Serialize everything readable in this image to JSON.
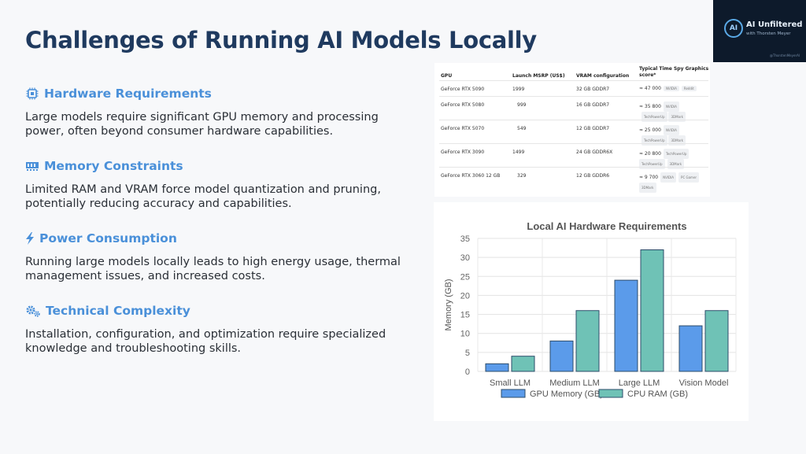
{
  "title": "Challenges of Running AI Models Locally",
  "logo": {
    "text": "AI Unfiltered",
    "subtitle": "with Thorsten Meyer",
    "handle": "@ThorstenMeyerAI",
    "mark": "AI"
  },
  "sections": [
    {
      "icon": "microchip-icon",
      "heading": "Hardware Requirements",
      "body": "Large models require significant GPU memory and processing power, often beyond consumer hardware capabilities."
    },
    {
      "icon": "memory-icon",
      "heading": "Memory Constraints",
      "body": "Limited RAM and VRAM force model quantization and pruning, potentially reducing accuracy and capabilities."
    },
    {
      "icon": "bolt-icon",
      "heading": "Power Consumption",
      "body": "Running large models locally leads to high energy usage, thermal management issues, and increased costs."
    },
    {
      "icon": "gears-icon",
      "heading": "Technical Complexity",
      "body": "Installation, configuration, and optimization require specialized knowledge and troubleshooting skills."
    }
  ],
  "colors": {
    "title": "#1f3a5f",
    "accent": "#4a90d9",
    "gpu": "#5b9bea",
    "cpu": "#6fc2b6"
  },
  "table": {
    "headers": {
      "gpu": "GPU",
      "msrp": "Launch MSRP (US$)",
      "vram": "VRAM configuration",
      "score1": "Typical Time Spy Graphics",
      "score2": "score*"
    },
    "rows": [
      {
        "gpu": "GeForce RTX 5090",
        "msrp": "1999",
        "vram": "32 GB GDDR7",
        "score": "≈ 47 000",
        "tags": [
          "NVIDIA",
          "Reddit"
        ]
      },
      {
        "gpu": "GeForce RTX 5080",
        "msrp": "999",
        "vram": "16 GB GDDR7",
        "score": "≈ 35 800",
        "tags": [
          "NVIDIA",
          "TechPowerUp",
          "3DMark"
        ]
      },
      {
        "gpu": "GeForce RTX 5070",
        "msrp": "549",
        "vram": "12 GB GDDR7",
        "score": "≈ 25 000",
        "tags": [
          "NVIDIA",
          "TechPowerUp",
          "3DMark"
        ]
      },
      {
        "gpu": "GeForce RTX 3090",
        "msrp": "1499",
        "vram": "24 GB GDDR6X",
        "score": "≈ 20 800",
        "tags": [
          "TechPowerUp",
          "TechPowerUp",
          "3DMark"
        ]
      },
      {
        "gpu": "GeForce RTX 3060 12 GB",
        "msrp": "329",
        "vram": "12 GB GDDR6",
        "score": "≈ 9 700",
        "tags": [
          "NVIDIA",
          "PC Gamer",
          "3DMark"
        ]
      }
    ]
  },
  "chart_data": {
    "type": "bar",
    "title": "Local AI Hardware Requirements",
    "ylabel": "Memory (GB)",
    "xlabel": "",
    "categories": [
      "Small LLM",
      "Medium LLM",
      "Large LLM",
      "Vision Model"
    ],
    "series": [
      {
        "name": "GPU Memory (GB)",
        "values": [
          2,
          8,
          24,
          12
        ],
        "color": "#5b9bea"
      },
      {
        "name": "CPU RAM (GB)",
        "values": [
          4,
          16,
          32,
          16
        ],
        "color": "#6fc2b6"
      }
    ],
    "ylim": [
      0,
      35
    ],
    "yticks": [
      0,
      5,
      10,
      15,
      20,
      25,
      30,
      35
    ],
    "grid": true,
    "legend": "bottom"
  }
}
